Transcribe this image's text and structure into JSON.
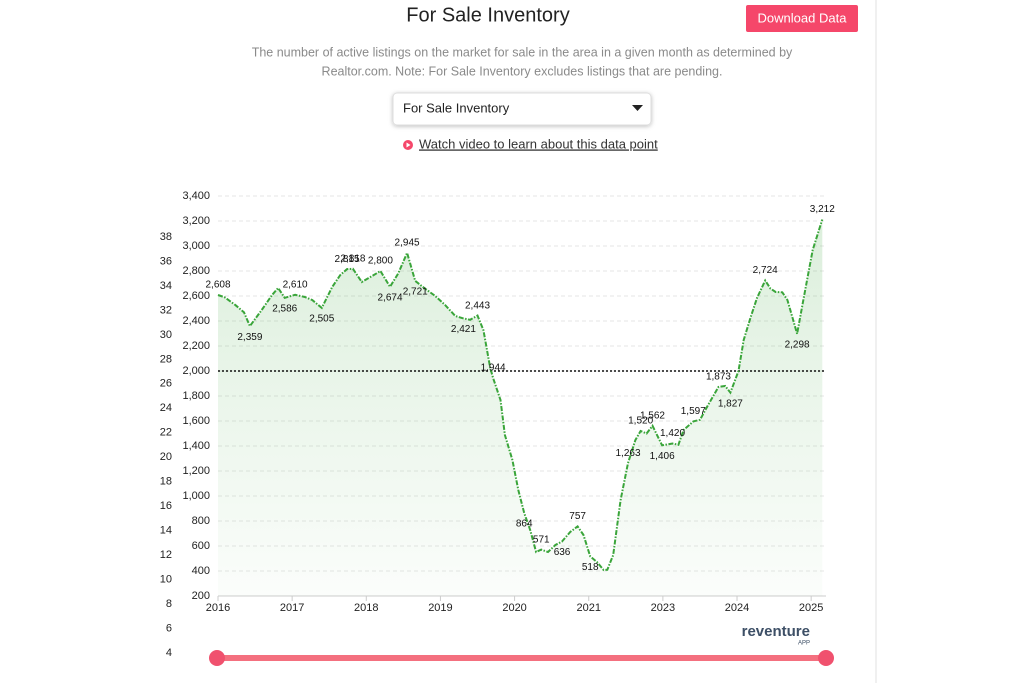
{
  "header": {
    "title": "For Sale Inventory",
    "button": "Download Data",
    "subtitle": [
      "The number of active listings on the market for sale in the area in a given month as determined by",
      "Realtor.com. Note: For Sale Inventory excludes listings that are pending."
    ],
    "dropdown": "For Sale Inventory",
    "video_link": "Watch video to learn about this data point"
  },
  "logo": {
    "name": "reventure",
    "tag": "APP"
  },
  "chart_data": {
    "type": "line",
    "color": "#3aa53a",
    "grid": true,
    "reference_y": 2000,
    "xlim": [
      2016,
      2024.2
    ],
    "ylim": [
      200,
      3400
    ],
    "xticks": [
      2016,
      2017,
      2018,
      2019,
      2020,
      2021,
      {
        "value": 2022,
        "label": "2023"
      },
      {
        "value": 2023,
        "label": "2024"
      },
      {
        "value": 2024,
        "label": "2025"
      }
    ],
    "yticks": [
      {
        "value": 200,
        "label": "200"
      },
      {
        "value": 400,
        "label": "400"
      },
      {
        "value": 600,
        "label": "600"
      },
      {
        "value": 800,
        "label": "800"
      },
      {
        "value": 1000,
        "label": "1,000"
      },
      {
        "value": 1200,
        "label": "1,200"
      },
      {
        "value": 1400,
        "label": "1,400"
      },
      {
        "value": 1600,
        "label": "1,600"
      },
      {
        "value": 1800,
        "label": "1,800"
      },
      {
        "value": 2000,
        "label": "2,000"
      },
      {
        "value": 2200,
        "label": "2,200"
      },
      {
        "value": 2400,
        "label": "2,400"
      },
      {
        "value": 2600,
        "label": "2,600"
      },
      {
        "value": 2800,
        "label": "2,800"
      },
      {
        "value": 3000,
        "label": "3,000"
      },
      {
        "value": 3200,
        "label": "3,200"
      },
      {
        "value": 3400,
        "label": "3,400"
      }
    ],
    "y2lim": [
      4,
      38
    ],
    "y2ticks": [
      4,
      6,
      8,
      10,
      12,
      14,
      16,
      18,
      20,
      22,
      24,
      26,
      28,
      30,
      32,
      34,
      36,
      38
    ],
    "x": [
      2016.0,
      2016.09,
      2016.23,
      2016.35,
      2016.43,
      2016.59,
      2016.73,
      2016.81,
      2016.9,
      2017.04,
      2017.17,
      2017.27,
      2017.4,
      2017.54,
      2017.65,
      2017.74,
      2017.82,
      2017.94,
      2018.08,
      2018.19,
      2018.32,
      2018.43,
      2018.55,
      2018.66,
      2018.79,
      2018.93,
      2019.06,
      2019.2,
      2019.31,
      2019.4,
      2019.5,
      2019.58,
      2019.67,
      2019.71,
      2019.81,
      2019.87,
      2019.97,
      2020.05,
      2020.13,
      2020.21,
      2020.29,
      2020.36,
      2020.45,
      2020.55,
      2020.64,
      2020.75,
      2020.85,
      2020.93,
      2021.02,
      2021.11,
      2021.2,
      2021.25,
      2021.33,
      2021.43,
      2021.53,
      2021.63,
      2021.7,
      2021.78,
      2021.86,
      2021.99,
      2022.13,
      2022.21,
      2022.28,
      2022.41,
      2022.5,
      2022.61,
      2022.75,
      2022.84,
      2022.91,
      2023.02,
      2023.09,
      2023.18,
      2023.27,
      2023.38,
      2023.45,
      2023.52,
      2023.61,
      2023.68,
      2023.75,
      2023.81,
      2023.92,
      2024.02,
      2024.15
    ],
    "values": [
      2608,
      2590,
      2530,
      2470,
      2359,
      2488,
      2608,
      2664,
      2586,
      2610,
      2592,
      2568,
      2505,
      2672,
      2768,
      2815,
      2818,
      2712,
      2760,
      2800,
      2674,
      2780,
      2945,
      2721,
      2660,
      2600,
      2530,
      2440,
      2421,
      2410,
      2443,
      2328,
      2030,
      1944,
      1768,
      1488,
      1288,
      1048,
      864,
      728,
      552,
      571,
      552,
      608,
      636,
      712,
      757,
      688,
      518,
      472,
      408,
      410,
      528,
      968,
      1263,
      1448,
      1520,
      1500,
      1562,
      1406,
      1420,
      1410,
      1528,
      1597,
      1610,
      1728,
      1873,
      1880,
      1827,
      2000,
      2248,
      2424,
      2584,
      2724,
      2660,
      2632,
      2630,
      2568,
      2424,
      2298,
      2648,
      2968,
      3212
    ],
    "value_labels": [
      "2,608",
      null,
      null,
      null,
      "2,359",
      null,
      null,
      null,
      "2,586",
      "2,610",
      null,
      null,
      "2,505",
      null,
      null,
      "2,815",
      "2,818",
      null,
      null,
      "2,800",
      "2,674",
      null,
      "2,945",
      "2,721",
      null,
      null,
      null,
      null,
      "2,421",
      null,
      "2,443",
      null,
      null,
      "1,944",
      null,
      null,
      null,
      null,
      "864",
      null,
      null,
      "571",
      null,
      null,
      "636",
      null,
      "757",
      null,
      "518",
      null,
      null,
      null,
      null,
      null,
      "1,263",
      null,
      "1,520",
      null,
      "1,562",
      "1,406",
      "1,420",
      null,
      null,
      "1,597",
      null,
      null,
      "1,873",
      null,
      "1,827",
      null,
      null,
      null,
      null,
      "2,724",
      null,
      null,
      null,
      null,
      null,
      "2,298",
      null,
      null,
      "3,212"
    ]
  }
}
